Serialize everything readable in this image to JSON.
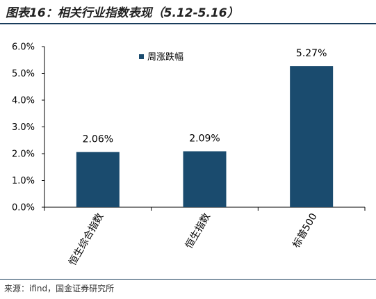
{
  "figure": {
    "title": "图表16：相关行业指数表现（5.12-5.16）",
    "source": "来源：ifind，国金证券研究所"
  },
  "chart_data": {
    "type": "bar",
    "categories": [
      "恒生综合指数",
      "恒生指数",
      "标普500"
    ],
    "series": [
      {
        "name": "周涨跌幅",
        "values": [
          2.06,
          2.09,
          5.27
        ]
      }
    ],
    "value_labels": [
      "2.06%",
      "2.09%",
      "5.27%"
    ],
    "ylim": [
      0,
      6
    ],
    "yticks": [
      "0.0%",
      "1.0%",
      "2.0%",
      "3.0%",
      "4.0%",
      "5.0%",
      "6.0%"
    ],
    "legend_position": "top-left",
    "grid": false,
    "bar_color": "#1a4b6e"
  }
}
